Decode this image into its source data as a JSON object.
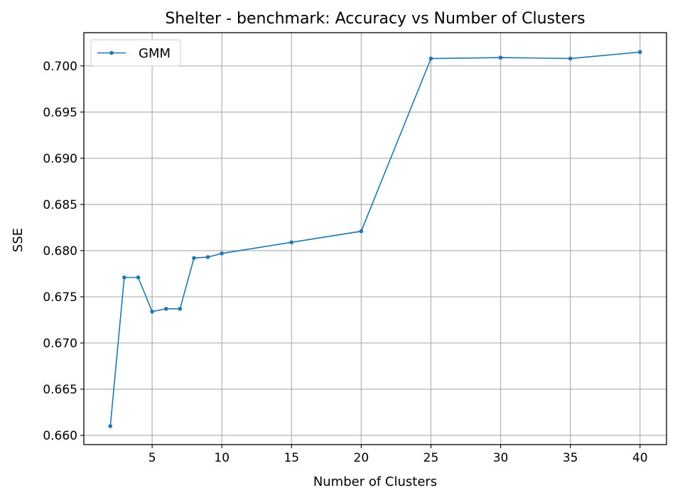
{
  "chart_data": {
    "type": "line",
    "title": "Shelter - benchmark: Accuracy vs Number of Clusters",
    "xlabel": "Number of Clusters",
    "ylabel": "SSE",
    "xlim": [
      0.1,
      41.9
    ],
    "ylim": [
      0.659,
      0.7036
    ],
    "x_ticks": [
      5,
      10,
      15,
      20,
      25,
      30,
      35,
      40
    ],
    "y_ticks": [
      0.66,
      0.665,
      0.67,
      0.675,
      0.68,
      0.685,
      0.69,
      0.695,
      0.7
    ],
    "x_tick_labels": [
      "5",
      "10",
      "15",
      "20",
      "25",
      "30",
      "35",
      "40"
    ],
    "y_tick_labels": [
      "0.660",
      "0.665",
      "0.670",
      "0.675",
      "0.680",
      "0.685",
      "0.690",
      "0.695",
      "0.700"
    ],
    "grid": true,
    "legend_position": "top-left",
    "series": [
      {
        "name": "GMM",
        "color": "#1f77b4",
        "marker": "circle",
        "x": [
          2,
          3,
          4,
          5,
          6,
          7,
          8,
          9,
          10,
          15,
          20,
          25,
          30,
          35,
          40
        ],
        "y": [
          0.661,
          0.6771,
          0.6771,
          0.6734,
          0.6737,
          0.6737,
          0.6792,
          0.6793,
          0.6797,
          0.6809,
          0.6821,
          0.7008,
          0.7009,
          0.7008,
          0.7015
        ]
      }
    ]
  }
}
